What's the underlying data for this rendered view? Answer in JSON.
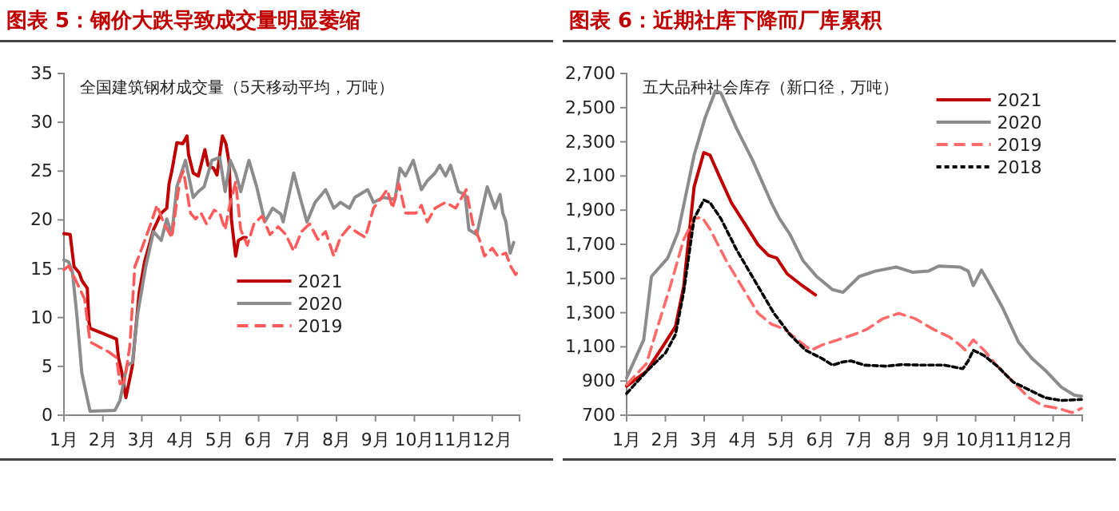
{
  "chart_data": [
    {
      "type": "line",
      "title": "图表 5：钢价大跌导致成交量明显萎缩",
      "subtitle": "全国建筑钢材成交量（5天移动平均，万吨）",
      "xlim": [
        1,
        12.7
      ],
      "xticks": [
        {
          "value": 1,
          "label": "1月"
        },
        {
          "value": 2,
          "label": "2月"
        },
        {
          "value": 3,
          "label": "3月"
        },
        {
          "value": 4,
          "label": "4月"
        },
        {
          "value": 5,
          "label": "5月"
        },
        {
          "value": 6,
          "label": "6月"
        },
        {
          "value": 7,
          "label": "7月"
        },
        {
          "value": 8,
          "label": "8月"
        },
        {
          "value": 9,
          "label": "9月"
        },
        {
          "value": 10,
          "label": "10月"
        },
        {
          "value": 11,
          "label": "11月"
        },
        {
          "value": 12,
          "label": "12月"
        }
      ],
      "ylim": [
        0,
        35
      ],
      "yticks": [
        0,
        5,
        10,
        15,
        20,
        25,
        30,
        35
      ],
      "legend": "center",
      "grid": false,
      "series": [
        {
          "name": "2021",
          "color": "#c00000",
          "line_style": "solid",
          "x": [
            1,
            1.16,
            1.26,
            1.39,
            1.46,
            1.6,
            1.64,
            1.67,
            2.35,
            2.4,
            2.48,
            2.59,
            2.76,
            2.93,
            3.07,
            3.3,
            3.5,
            3.64,
            3.7,
            3.77,
            3.9,
            4.05,
            4.16,
            4.2,
            4.32,
            4.45,
            4.62,
            4.7,
            4.84,
            4.93,
            5.07,
            5.16,
            5.24,
            5.3,
            5.41,
            5.48,
            5.61,
            5.68
          ],
          "values": [
            18.6,
            18.5,
            15.2,
            14.6,
            13.8,
            13,
            9.7,
            8.9,
            7.8,
            5.9,
            4.5,
            1.8,
            5.1,
            12.5,
            15.7,
            19,
            20.7,
            21.2,
            23.7,
            25,
            27.9,
            27.8,
            28.6,
            26.7,
            24.8,
            24.5,
            27.2,
            25.6,
            25.3,
            24.6,
            28.6,
            27.8,
            25.9,
            20.1,
            16.3,
            17.9,
            18.2,
            18.2
          ]
        },
        {
          "name": "2020",
          "color": "#8c8c8c",
          "line_style": "solid",
          "x": [
            1,
            1.12,
            1.22,
            1.33,
            1.46,
            1.67,
            2.31,
            2.44,
            2.62,
            2.76,
            2.89,
            3.1,
            3.3,
            3.5,
            3.64,
            3.77,
            3.9,
            4.12,
            4.32,
            4.45,
            4.6,
            4.8,
            5.0,
            5.14,
            5.27,
            5.41,
            5.54,
            5.75,
            5.95,
            6.16,
            6.36,
            6.57,
            6.63,
            6.9,
            7.1,
            7.24,
            7.45,
            7.72,
            7.93,
            8.1,
            8.33,
            8.47,
            8.8,
            8.95,
            9.2,
            9.5,
            9.63,
            9.77,
            9.97,
            10.18,
            10.33,
            10.53,
            10.65,
            10.8,
            10.93,
            11.13,
            11.3,
            11.4,
            11.6,
            11.87,
            12.07,
            12.2,
            12.27,
            12.35,
            12.46,
            12.55
          ],
          "values": [
            15.9,
            15.7,
            14.6,
            10.3,
            4.3,
            0.4,
            0.5,
            1.5,
            5.1,
            5.4,
            10.3,
            15.2,
            18.8,
            17.9,
            20.1,
            18.5,
            23.4,
            26.1,
            22.3,
            22.9,
            23.4,
            26.1,
            26.4,
            22.9,
            26.1,
            24.8,
            22.9,
            26.1,
            23.4,
            19.8,
            21.2,
            20.6,
            19.8,
            24.8,
            21.8,
            19.8,
            21.8,
            23.1,
            21.2,
            21.8,
            21.2,
            22.3,
            23.1,
            21.8,
            22.3,
            22.1,
            25.3,
            24.5,
            26.1,
            23.1,
            24,
            24.8,
            25.6,
            24.5,
            25.6,
            22.9,
            22.6,
            19,
            18.5,
            23.4,
            21.2,
            22.6,
            20.7,
            19.8,
            16.6,
            17.7
          ]
        },
        {
          "name": "2019",
          "color": "#ff5b5b",
          "line_style": "dashed",
          "x": [
            1,
            1.12,
            1.33,
            1.53,
            1.67,
            2.14,
            2.35,
            2.44,
            2.55,
            2.69,
            2.82,
            3.03,
            3.23,
            3.39,
            3.57,
            3.77,
            3.98,
            4.07,
            4.25,
            4.38,
            4.52,
            4.66,
            4.86,
            5.0,
            5.14,
            5.24,
            5.41,
            5.54,
            5.71,
            5.88,
            6.09,
            6.29,
            6.5,
            6.7,
            6.9,
            7.1,
            7.31,
            7.52,
            7.72,
            7.93,
            8.1,
            8.33,
            8.5,
            8.74,
            8.95,
            9.16,
            9.3,
            9.44,
            9.6,
            9.77,
            10.04,
            10.18,
            10.33,
            10.53,
            10.8,
            11.06,
            11.33,
            11.5,
            11.67,
            11.8,
            12.0,
            12.14,
            12.35,
            12.48,
            12.6,
            12.69
          ],
          "values": [
            14.9,
            15.3,
            13.6,
            11.9,
            7.5,
            6.5,
            5.9,
            3.2,
            3.4,
            7,
            15.2,
            17.4,
            19.6,
            21.5,
            19.6,
            18.2,
            24.2,
            25,
            20.7,
            20.1,
            20.7,
            19.6,
            21,
            20.7,
            19,
            21.2,
            23.9,
            19,
            17.4,
            19.6,
            20.4,
            18.5,
            19.3,
            18.5,
            16.8,
            18.8,
            19.6,
            18,
            18.8,
            16.3,
            18.2,
            19.3,
            18.8,
            18.2,
            21.2,
            22.3,
            23.1,
            21.2,
            23.7,
            20.7,
            20.7,
            21.5,
            19.8,
            21.2,
            21.8,
            21.2,
            23.1,
            19.6,
            18,
            16.3,
            17.1,
            16.3,
            16.6,
            15.2,
            14.4,
            14.9
          ]
        }
      ]
    },
    {
      "type": "line",
      "title": "图表 6：近期社库下降而厂库累积",
      "subtitle": "五大品种社会库存（新口径，万吨）",
      "xlim": [
        1,
        12.75
      ],
      "xticks": [
        {
          "value": 1,
          "label": "1月"
        },
        {
          "value": 2,
          "label": "2月"
        },
        {
          "value": 3,
          "label": "3月"
        },
        {
          "value": 4,
          "label": "4月"
        },
        {
          "value": 5,
          "label": "5月"
        },
        {
          "value": 6,
          "label": "6月"
        },
        {
          "value": 7,
          "label": "7月"
        },
        {
          "value": 8,
          "label": "8月"
        },
        {
          "value": 9,
          "label": "9月"
        },
        {
          "value": 10,
          "label": "10月"
        },
        {
          "value": 11,
          "label": "11月"
        },
        {
          "value": 12,
          "label": "12月"
        }
      ],
      "ylim": [
        700,
        2700
      ],
      "yticks": [
        {
          "value": 700,
          "label": "700"
        },
        {
          "value": 900,
          "label": "900"
        },
        {
          "value": 1100,
          "label": "1,100"
        },
        {
          "value": 1300,
          "label": "1,300"
        },
        {
          "value": 1500,
          "label": "1,500"
        },
        {
          "value": 1700,
          "label": "1,700"
        },
        {
          "value": 1900,
          "label": "1,900"
        },
        {
          "value": 2100,
          "label": "2,100"
        },
        {
          "value": 2300,
          "label": "2,300"
        },
        {
          "value": 2500,
          "label": "2,500"
        },
        {
          "value": 2700,
          "label": "2,700"
        }
      ],
      "legend": "top right",
      "grid": false,
      "series": [
        {
          "name": "2021",
          "color": "#c00000",
          "line_style": "solid",
          "x": [
            1,
            1.51,
            2.0,
            2.26,
            2.47,
            2.74,
            2.99,
            3.15,
            3.36,
            3.7,
            4.05,
            4.39,
            4.66,
            4.87,
            5.14,
            5.49,
            5.87
          ],
          "values": [
            870,
            956,
            1126,
            1219,
            1450,
            2036,
            2237,
            2222,
            2114,
            1944,
            1820,
            1697,
            1635,
            1620,
            1527,
            1465,
            1404
          ]
        },
        {
          "name": "2020",
          "color": "#8c8c8c",
          "line_style": "solid",
          "x": [
            1,
            1.44,
            1.64,
            2.06,
            2.33,
            2.74,
            3.02,
            3.29,
            3.43,
            3.84,
            4.25,
            4.73,
            4.94,
            5.21,
            5.55,
            5.9,
            6.31,
            6.58,
            6.79,
            7.0,
            7.41,
            7.95,
            8.37,
            8.78,
            9.05,
            9.6,
            9.81,
            9.94,
            10.15,
            10.29,
            10.7,
            11.11,
            11.45,
            11.8,
            12.21,
            12.55,
            12.73
          ],
          "values": [
            919,
            1141,
            1512,
            1620,
            1774,
            2222,
            2438,
            2598,
            2586,
            2376,
            2191,
            1944,
            1851,
            1759,
            1604,
            1512,
            1435,
            1419,
            1465,
            1512,
            1543,
            1567,
            1537,
            1543,
            1573,
            1567,
            1543,
            1459,
            1549,
            1496,
            1327,
            1126,
            1033,
            962,
            864,
            817,
            811
          ]
        },
        {
          "name": "2019",
          "color": "#ff6b6b",
          "line_style": "dashed",
          "x": [
            1,
            1.51,
            1.78,
            2.12,
            2.47,
            2.74,
            2.95,
            3.15,
            3.57,
            3.98,
            4.39,
            4.73,
            5.07,
            5.49,
            5.76,
            6.03,
            6.45,
            6.86,
            7.2,
            7.61,
            8.02,
            8.44,
            8.91,
            9.33,
            9.6,
            9.74,
            9.94,
            10.22,
            10.56,
            10.97,
            11.38,
            11.73,
            12.14,
            12.48,
            12.73
          ],
          "values": [
            879,
            1002,
            1203,
            1450,
            1728,
            1851,
            1857,
            1789,
            1604,
            1450,
            1296,
            1234,
            1203,
            1126,
            1080,
            1110,
            1141,
            1172,
            1203,
            1265,
            1296,
            1265,
            1203,
            1157,
            1110,
            1080,
            1141,
            1080,
            987,
            894,
            802,
            756,
            740,
            715,
            740
          ]
        },
        {
          "name": "2018",
          "color": "#000000",
          "line_style": "dotted",
          "x": [
            1,
            1.51,
            2.0,
            2.26,
            2.47,
            2.74,
            2.99,
            3.15,
            3.43,
            3.84,
            4.32,
            4.8,
            5.21,
            5.62,
            6.03,
            6.31,
            6.58,
            6.79,
            7.13,
            7.68,
            8.09,
            8.64,
            9.19,
            9.67,
            9.81,
            9.94,
            10.22,
            10.56,
            10.97,
            11.38,
            11.8,
            12.21,
            12.73
          ],
          "values": [
            827,
            956,
            1064,
            1172,
            1419,
            1851,
            1959,
            1944,
            1851,
            1666,
            1481,
            1296,
            1172,
            1080,
            1033,
            993,
            1012,
            1018,
            993,
            987,
            996,
            993,
            993,
            972,
            1018,
            1080,
            1049,
            987,
            894,
            848,
            802,
            786,
            792
          ]
        }
      ]
    }
  ]
}
